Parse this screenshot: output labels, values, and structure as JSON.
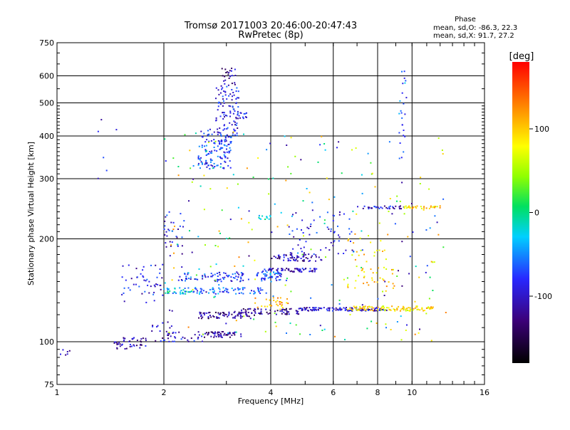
{
  "chart_data": {
    "type": "scatter",
    "title": "Tromsø 20171003 20:46:00-20:47:43",
    "subtitle": "RwPretec (8p)",
    "xlabel": "Frequency [MHz]",
    "ylabel": "Stationary phase Virtual Height [km]",
    "x_scale": "log",
    "y_scale": "log",
    "xlim": [
      1,
      16
    ],
    "ylim": [
      75,
      750
    ],
    "x_ticks": [
      1,
      2,
      4,
      6,
      8,
      10,
      16
    ],
    "y_ticks": [
      75,
      100,
      200,
      300,
      400,
      500,
      600,
      750
    ],
    "grid": true,
    "phase_info": {
      "heading": "Phase",
      "line_o": "mean, sd,O: -86.3, 22.3",
      "line_x": "mean, sd,X:  91.7, 27.2"
    },
    "colorbar": {
      "label": "[deg]",
      "ticks": [
        100,
        0,
        -100
      ],
      "range": [
        -180,
        180
      ]
    },
    "clusters": [
      {
        "x": [
          2.5,
          3.1
        ],
        "y": [
          320,
          420
        ],
        "phase": -75,
        "n": 140
      },
      {
        "x": [
          2.8,
          3.25
        ],
        "y": [
          400,
          560
        ],
        "phase": -90,
        "n": 90
      },
      {
        "x": [
          2.9,
          3.2
        ],
        "y": [
          560,
          640
        ],
        "phase": -110,
        "n": 25
      },
      {
        "x": [
          3.2,
          3.5
        ],
        "y": [
          450,
          470
        ],
        "phase": -85,
        "n": 15
      },
      {
        "x": [
          2.0,
          2.3
        ],
        "y": [
          180,
          240
        ],
        "phase": -95,
        "n": 30
      },
      {
        "x": [
          1.5,
          2.0
        ],
        "y": [
          130,
          170
        ],
        "phase": -90,
        "n": 50
      },
      {
        "x": [
          1.45,
          1.8
        ],
        "y": [
          95,
          103
        ],
        "phase": -110,
        "n": 45
      },
      {
        "x": [
          1.85,
          2.1
        ],
        "y": [
          100,
          115
        ],
        "phase": -100,
        "n": 20
      },
      {
        "x": [
          2.05,
          2.6
        ],
        "y": [
          100,
          107
        ],
        "phase": -100,
        "n": 25
      },
      {
        "x": [
          2.6,
          3.3
        ],
        "y": [
          103,
          107
        ],
        "phase": -120,
        "n": 55
      },
      {
        "x": [
          2.0,
          2.4
        ],
        "y": [
          138,
          144
        ],
        "phase": -30,
        "n": 35
      },
      {
        "x": [
          2.4,
          3.8
        ],
        "y": [
          138,
          144
        ],
        "phase": -60,
        "n": 70
      },
      {
        "x": [
          2.2,
          3.5
        ],
        "y": [
          150,
          160
        ],
        "phase": -80,
        "n": 80
      },
      {
        "x": [
          2.5,
          3.6
        ],
        "y": [
          117,
          122
        ],
        "phase": -120,
        "n": 70
      },
      {
        "x": [
          3.3,
          4.8
        ],
        "y": [
          120,
          125
        ],
        "phase": -125,
        "n": 60
      },
      {
        "x": [
          3.6,
          4.3
        ],
        "y": [
          150,
          160
        ],
        "phase": -70,
        "n": 50
      },
      {
        "x": [
          3.8,
          5.4
        ],
        "y": [
          160,
          164
        ],
        "phase": -100,
        "n": 60
      },
      {
        "x": [
          4.0,
          5.6
        ],
        "y": [
          172,
          180
        ],
        "phase": -110,
        "n": 60
      },
      {
        "x": [
          3.6,
          4.5
        ],
        "y": [
          125,
          135
        ],
        "phase": 110,
        "n": 30
      },
      {
        "x": [
          4.8,
          8.5
        ],
        "y": [
          123,
          126
        ],
        "phase": -100,
        "n": 110
      },
      {
        "x": [
          6.5,
          11.5
        ],
        "y": [
          123,
          127
        ],
        "phase": 90,
        "n": 100
      },
      {
        "x": [
          6.5,
          9.0
        ],
        "y": [
          140,
          210
        ],
        "phase": 95,
        "n": 55
      },
      {
        "x": [
          4.5,
          6.8
        ],
        "y": [
          180,
          240
        ],
        "phase": -90,
        "n": 60
      },
      {
        "x": [
          7.0,
          9.5
        ],
        "y": [
          245,
          250
        ],
        "phase": -100,
        "n": 35
      },
      {
        "x": [
          9.5,
          12.0
        ],
        "y": [
          245,
          250
        ],
        "phase": 95,
        "n": 35
      },
      {
        "x": [
          3.7,
          4.0
        ],
        "y": [
          228,
          234
        ],
        "phase": -20,
        "n": 12
      },
      {
        "x": [
          9.2,
          9.7
        ],
        "y": [
          340,
          640
        ],
        "phase": -60,
        "n": 25
      },
      {
        "x": [
          1.0,
          1.1
        ],
        "y": [
          90,
          95
        ],
        "phase": -110,
        "n": 6
      },
      {
        "x": [
          1.3,
          1.5
        ],
        "y": [
          300,
          460
        ],
        "phase": -100,
        "n": 6
      },
      {
        "x": [
          2.0,
          12.5
        ],
        "y": [
          100,
          420
        ],
        "phase": 0,
        "n": 260
      }
    ]
  }
}
